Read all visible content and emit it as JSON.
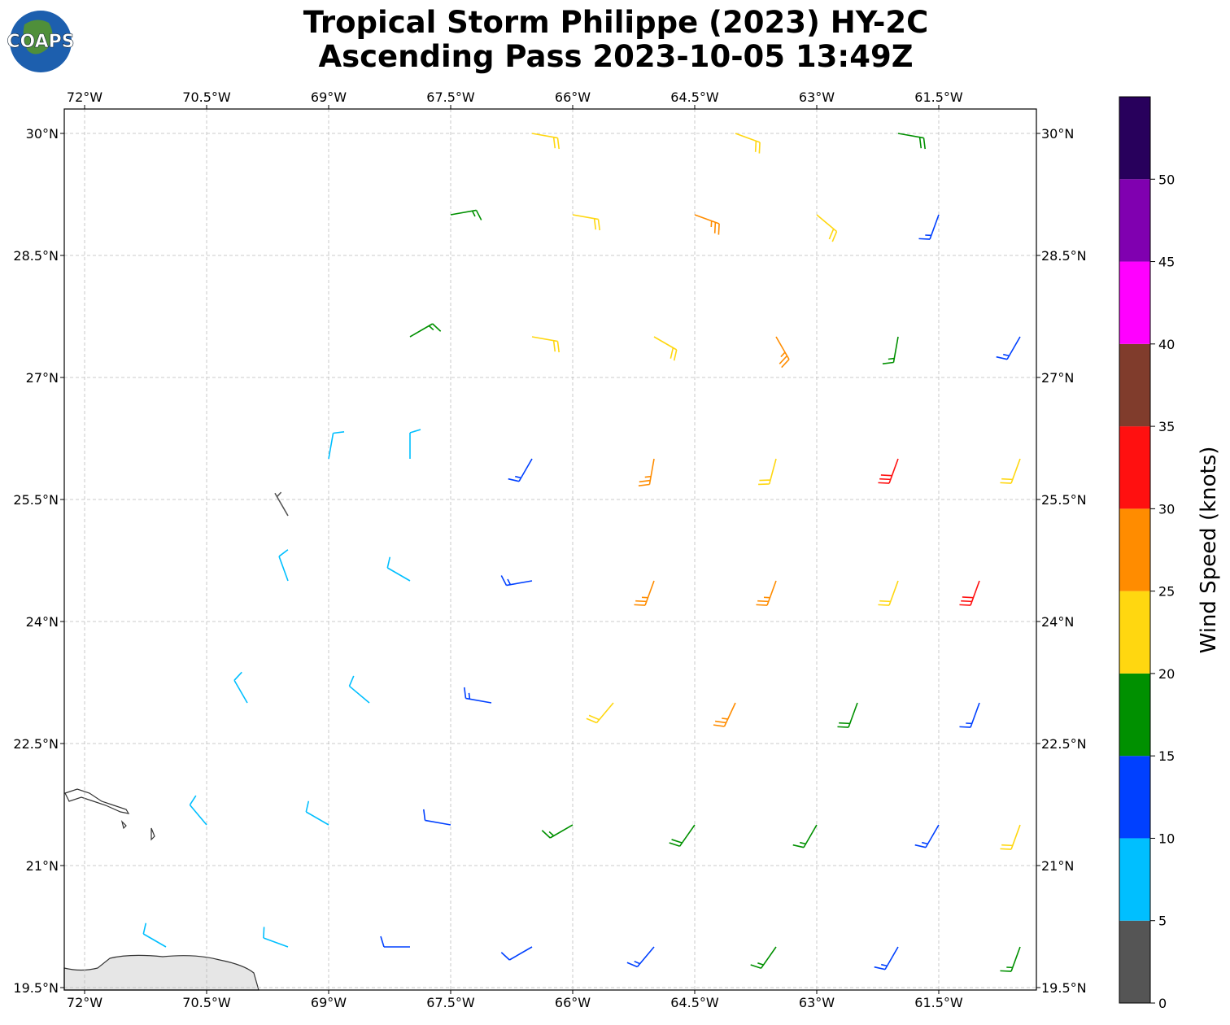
{
  "map": {
    "logo": "COAPS",
    "title": "Tropical Storm Philippe (2023) HY-2C",
    "subtitle": "Ascending Pass 2023-10-05 13:49Z",
    "xlim": [
      -72.25,
      -60.3
    ],
    "ylim": [
      19.47,
      30.3
    ],
    "xticks": [
      {
        "value": -72,
        "label": "72°W"
      },
      {
        "value": -70.5,
        "label": "70.5°W"
      },
      {
        "value": -69,
        "label": "69°W"
      },
      {
        "value": -67.5,
        "label": "67.5°W"
      },
      {
        "value": -66,
        "label": "66°W"
      },
      {
        "value": -64.5,
        "label": "64.5°W"
      },
      {
        "value": -63,
        "label": "63°W"
      },
      {
        "value": -61.5,
        "label": "61.5°W"
      }
    ],
    "yticks": [
      {
        "value": 19.5,
        "label": "19.5°N"
      },
      {
        "value": 21,
        "label": "21°N"
      },
      {
        "value": 22.5,
        "label": "22.5°N"
      },
      {
        "value": 24,
        "label": "24°N"
      },
      {
        "value": 25.5,
        "label": "25.5°N"
      },
      {
        "value": 27,
        "label": "27°N"
      },
      {
        "value": 28.5,
        "label": "28.5°N"
      },
      {
        "value": 30,
        "label": "30°N"
      }
    ],
    "grid": true,
    "colorbar": {
      "label": "Wind Speed (knots)",
      "bounds": [
        0,
        5,
        10,
        15,
        20,
        25,
        30,
        35,
        40,
        45,
        50,
        55
      ],
      "colors": [
        "#555555",
        "#00bfff",
        "#0040ff",
        "#009000",
        "#ffd710",
        "#ff8c00",
        "#ff1010",
        "#803c2c",
        "#ff00ff",
        "#8000b0",
        "#28005c"
      ],
      "ticks": [
        0,
        5,
        10,
        15,
        20,
        25,
        30,
        35,
        40,
        45,
        50
      ]
    },
    "barbs": [
      {
        "lon": -71,
        "lat": 20,
        "speed": 8,
        "direction": 300
      },
      {
        "lon": -69.5,
        "lat": 20,
        "speed": 8,
        "direction": 290
      },
      {
        "lon": -68,
        "lat": 20,
        "speed": 12,
        "direction": 270
      },
      {
        "lon": -66.5,
        "lat": 20,
        "speed": 12,
        "direction": 240
      },
      {
        "lon": -65,
        "lat": 20,
        "speed": 13,
        "direction": 220
      },
      {
        "lon": -63.5,
        "lat": 20,
        "speed": 17,
        "direction": 215
      },
      {
        "lon": -62,
        "lat": 20,
        "speed": 14,
        "direction": 210
      },
      {
        "lon": -60.5,
        "lat": 20,
        "speed": 17,
        "direction": 200
      },
      {
        "lon": -70.5,
        "lat": 21.5,
        "speed": 8,
        "direction": 320
      },
      {
        "lon": -69,
        "lat": 21.5,
        "speed": 8,
        "direction": 300
      },
      {
        "lon": -67.5,
        "lat": 21.5,
        "speed": 12,
        "direction": 280
      },
      {
        "lon": -66,
        "lat": 21.5,
        "speed": 17,
        "direction": 240
      },
      {
        "lon": -64.5,
        "lat": 21.5,
        "speed": 18,
        "direction": 215
      },
      {
        "lon": -63,
        "lat": 21.5,
        "speed": 17,
        "direction": 210
      },
      {
        "lon": -61.5,
        "lat": 21.5,
        "speed": 13,
        "direction": 210
      },
      {
        "lon": -60.5,
        "lat": 21.5,
        "speed": 22,
        "direction": 200
      },
      {
        "lon": -70,
        "lat": 23,
        "speed": 8,
        "direction": 330
      },
      {
        "lon": -68.5,
        "lat": 23,
        "speed": 8,
        "direction": 310
      },
      {
        "lon": -67,
        "lat": 23,
        "speed": 13,
        "direction": 280
      },
      {
        "lon": -65.5,
        "lat": 23,
        "speed": 22,
        "direction": 220
      },
      {
        "lon": -64,
        "lat": 23,
        "speed": 27,
        "direction": 205
      },
      {
        "lon": -62.5,
        "lat": 23,
        "speed": 18,
        "direction": 200
      },
      {
        "lon": -61,
        "lat": 23,
        "speed": 13,
        "direction": 200
      },
      {
        "lon": -69.5,
        "lat": 24.5,
        "speed": 8,
        "direction": 340
      },
      {
        "lon": -68,
        "lat": 24.5,
        "speed": 8,
        "direction": 300
      },
      {
        "lon": -66.5,
        "lat": 24.5,
        "speed": 13,
        "direction": 260
      },
      {
        "lon": -65,
        "lat": 24.5,
        "speed": 27,
        "direction": 200
      },
      {
        "lon": -63.5,
        "lat": 24.5,
        "speed": 27,
        "direction": 200
      },
      {
        "lon": -62,
        "lat": 24.5,
        "speed": 22,
        "direction": 200
      },
      {
        "lon": -61,
        "lat": 24.5,
        "speed": 32,
        "direction": 200
      },
      {
        "lon": -69.5,
        "lat": 25.3,
        "speed": 4,
        "direction": 330
      },
      {
        "lon": -69,
        "lat": 26,
        "speed": 8,
        "direction": 10
      },
      {
        "lon": -68,
        "lat": 26,
        "speed": 8,
        "direction": 0
      },
      {
        "lon": -66.5,
        "lat": 26,
        "speed": 13,
        "direction": 210
      },
      {
        "lon": -65,
        "lat": 26,
        "speed": 27,
        "direction": 190
      },
      {
        "lon": -63.5,
        "lat": 26,
        "speed": 22,
        "direction": 195
      },
      {
        "lon": -62,
        "lat": 26,
        "speed": 32,
        "direction": 200
      },
      {
        "lon": -60.5,
        "lat": 26,
        "speed": 22,
        "direction": 200
      },
      {
        "lon": -68,
        "lat": 27.5,
        "speed": 17,
        "direction": 60
      },
      {
        "lon": -66.5,
        "lat": 27.5,
        "speed": 22,
        "direction": 100
      },
      {
        "lon": -65,
        "lat": 27.5,
        "speed": 22,
        "direction": 120
      },
      {
        "lon": -63.5,
        "lat": 27.5,
        "speed": 27,
        "direction": 150
      },
      {
        "lon": -62,
        "lat": 27.5,
        "speed": 17,
        "direction": 190
      },
      {
        "lon": -60.5,
        "lat": 27.5,
        "speed": 13,
        "direction": 210
      },
      {
        "lon": -67.5,
        "lat": 29,
        "speed": 17,
        "direction": 80
      },
      {
        "lon": -66,
        "lat": 29,
        "speed": 22,
        "direction": 100
      },
      {
        "lon": -64.5,
        "lat": 29,
        "speed": 27,
        "direction": 110
      },
      {
        "lon": -63,
        "lat": 29,
        "speed": 22,
        "direction": 130
      },
      {
        "lon": -61.5,
        "lat": 29,
        "speed": 13,
        "direction": 200
      },
      {
        "lon": -66.5,
        "lat": 30,
        "speed": 22,
        "direction": 100
      },
      {
        "lon": -64,
        "lat": 30,
        "speed": 22,
        "direction": 110
      },
      {
        "lon": -62,
        "lat": 30,
        "speed": 18,
        "direction": 100
      }
    ]
  }
}
